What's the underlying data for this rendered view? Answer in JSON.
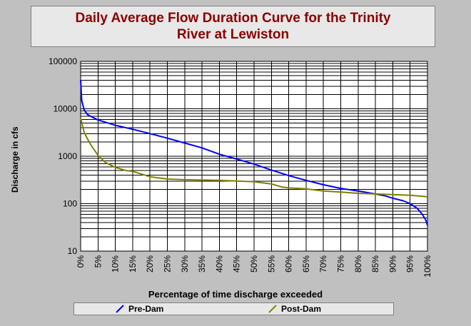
{
  "chart_data": {
    "type": "line",
    "title": "Daily Average Flow Duration Curve for the Trinity\nRiver at Lewiston",
    "xlabel": "Percentage of time discharge exceeded",
    "ylabel": "Discharge in cfs",
    "y_scale": "log",
    "ylim": [
      10,
      100000
    ],
    "xlim": [
      0,
      100
    ],
    "grid": true,
    "x_ticks": [
      "0%",
      "5%",
      "10%",
      "15%",
      "20%",
      "25%",
      "30%",
      "35%",
      "40%",
      "45%",
      "50%",
      "55%",
      "60%",
      "65%",
      "70%",
      "75%",
      "80%",
      "85%",
      "90%",
      "95%",
      "100%"
    ],
    "y_ticks": [
      "10",
      "100",
      "1000",
      "10000",
      "100000"
    ],
    "legend_position": "bottom",
    "series": [
      {
        "name": "Pre-Dam",
        "color": "#0000ff",
        "points": [
          [
            0,
            40000
          ],
          [
            0.3,
            15000
          ],
          [
            1,
            9500
          ],
          [
            2,
            7500
          ],
          [
            5,
            5800
          ],
          [
            10,
            4500
          ],
          [
            15,
            3700
          ],
          [
            20,
            3000
          ],
          [
            25,
            2400
          ],
          [
            30,
            1900
          ],
          [
            35,
            1500
          ],
          [
            40,
            1100
          ],
          [
            45,
            870
          ],
          [
            50,
            680
          ],
          [
            55,
            510
          ],
          [
            60,
            390
          ],
          [
            65,
            310
          ],
          [
            70,
            250
          ],
          [
            75,
            210
          ],
          [
            80,
            185
          ],
          [
            85,
            160
          ],
          [
            88,
            145
          ],
          [
            90,
            130
          ],
          [
            93,
            115
          ],
          [
            95,
            100
          ],
          [
            97,
            80
          ],
          [
            98.5,
            60
          ],
          [
            99.5,
            45
          ],
          [
            100,
            35
          ]
        ]
      },
      {
        "name": "Post-Dam",
        "color": "#808000",
        "points": [
          [
            0,
            6500
          ],
          [
            1,
            3200
          ],
          [
            2,
            2300
          ],
          [
            3,
            1700
          ],
          [
            5,
            1050
          ],
          [
            7,
            750
          ],
          [
            10,
            580
          ],
          [
            13,
            500
          ],
          [
            15,
            480
          ],
          [
            20,
            370
          ],
          [
            25,
            330
          ],
          [
            30,
            320
          ],
          [
            35,
            315
          ],
          [
            40,
            310
          ],
          [
            45,
            300
          ],
          [
            50,
            290
          ],
          [
            55,
            260
          ],
          [
            58,
            225
          ],
          [
            60,
            215
          ],
          [
            65,
            205
          ],
          [
            70,
            185
          ],
          [
            75,
            175
          ],
          [
            80,
            165
          ],
          [
            85,
            160
          ],
          [
            90,
            155
          ],
          [
            95,
            150
          ],
          [
            100,
            140
          ]
        ]
      }
    ]
  }
}
